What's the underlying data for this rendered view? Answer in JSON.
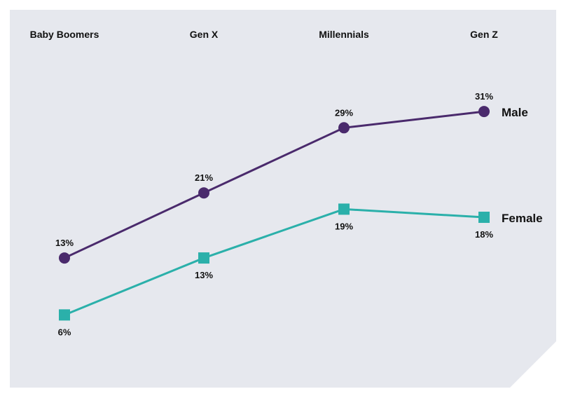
{
  "colors": {
    "panel": "#E6E8EE",
    "male": "#4A2A6C",
    "female": "#2BB0AA",
    "text": "#111111"
  },
  "chart_data": {
    "type": "line",
    "categories": [
      "Baby Boomers",
      "Gen X",
      "Millennials",
      "Gen Z"
    ],
    "series": [
      {
        "name": "Male",
        "values": [
          13,
          21,
          29,
          31
        ],
        "labels": [
          "13%",
          "21%",
          "29%",
          "31%"
        ],
        "marker": "circle"
      },
      {
        "name": "Female",
        "values": [
          6,
          13,
          19,
          18
        ],
        "labels": [
          "6%",
          "13%",
          "19%",
          "18%"
        ],
        "marker": "square"
      }
    ],
    "title": "",
    "xlabel": "",
    "ylabel": "",
    "ylim": [
      0,
      35
    ],
    "grid": false,
    "legend": "inline-right"
  }
}
